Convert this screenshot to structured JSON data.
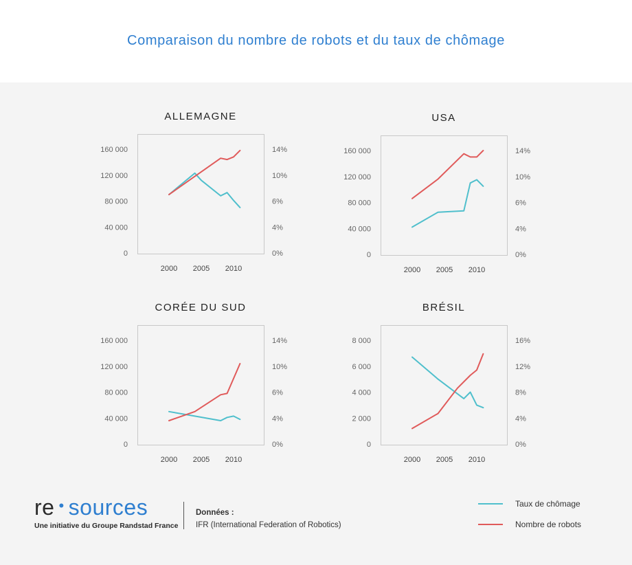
{
  "header": {
    "title": "Comparaison du nombre de robots et du taux de chômage"
  },
  "colors": {
    "robots": "#e05a5a",
    "chomage": "#4fbfcc",
    "accent": "#2f7fd0"
  },
  "logo": {
    "part1": "re",
    "dot": "•",
    "part2": "sources",
    "tagline": "Une initiative du Groupe Randstad France"
  },
  "source": {
    "label": "Données :",
    "text": "IFR (International Federation of Robotics)"
  },
  "legend": [
    {
      "label": "Taux de chômage",
      "color": "#4fbfcc"
    },
    {
      "label": "Nombre de robots",
      "color": "#e05a5a"
    }
  ],
  "chart_data": [
    {
      "type": "line",
      "title": "ALLEMAGNE",
      "x_ticks": [
        "2000",
        "2005",
        "2010"
      ],
      "left_axis": {
        "ticks": [
          "0",
          "40 000",
          "80 000",
          "120 000",
          "160 000"
        ],
        "ylim": [
          0,
          160000
        ]
      },
      "right_axis": {
        "ticks": [
          "0%",
          "4%",
          "6%",
          "10%",
          "14%"
        ],
        "ylim": [
          0,
          16
        ]
      },
      "series": [
        {
          "name": "Taux de chômage",
          "axis": "right",
          "x": [
            2000,
            2004,
            2005,
            2008,
            2009,
            2010,
            2011
          ],
          "values": [
            9.0,
            12.3,
            11.2,
            8.8,
            9.3,
            8.1,
            7.0
          ]
        },
        {
          "name": "Nombre de robots",
          "axis": "left",
          "x": [
            2000,
            2004,
            2008,
            2009,
            2010,
            2011
          ],
          "values": [
            90000,
            118000,
            146000,
            144000,
            148000,
            158000
          ]
        }
      ]
    },
    {
      "type": "line",
      "title": "USA",
      "x_ticks": [
        "2000",
        "2005",
        "2010"
      ],
      "left_axis": {
        "ticks": [
          "0",
          "40 000",
          "80 000",
          "120 000",
          "160 000"
        ],
        "ylim": [
          0,
          160000
        ]
      },
      "right_axis": {
        "ticks": [
          "0%",
          "4%",
          "6%",
          "10%",
          "14%"
        ],
        "ylim": [
          0,
          16
        ]
      },
      "series": [
        {
          "name": "Taux de chômage",
          "axis": "right",
          "x": [
            2000,
            2004,
            2008,
            2009,
            2010,
            2011
          ],
          "values": [
            4.2,
            6.5,
            6.7,
            11.0,
            11.5,
            10.5
          ]
        },
        {
          "name": "Nombre de robots",
          "axis": "left",
          "x": [
            2000,
            2004,
            2008,
            2009,
            2010,
            2011
          ],
          "values": [
            86000,
            116000,
            155000,
            150000,
            150000,
            160000
          ]
        }
      ]
    },
    {
      "type": "line",
      "title": "CORÉE DU SUD",
      "x_ticks": [
        "2000",
        "2005",
        "2010"
      ],
      "left_axis": {
        "ticks": [
          "0",
          "40 000",
          "80 000",
          "120 000",
          "160 000"
        ],
        "ylim": [
          0,
          160000
        ]
      },
      "right_axis": {
        "ticks": [
          "0%",
          "4%",
          "6%",
          "10%",
          "14%"
        ],
        "ylim": [
          0,
          16
        ]
      },
      "series": [
        {
          "name": "Taux de chômage",
          "axis": "right",
          "x": [
            2000,
            2004,
            2008,
            2009,
            2010,
            2011
          ],
          "values": [
            5.0,
            4.3,
            3.6,
            4.1,
            4.3,
            3.8
          ]
        },
        {
          "name": "Nombre de robots",
          "axis": "left",
          "x": [
            2000,
            2004,
            2008,
            2009,
            2011
          ],
          "values": [
            36000,
            50000,
            76000,
            78000,
            124000
          ]
        }
      ]
    },
    {
      "type": "line",
      "title": "BRÉSIL",
      "x_ticks": [
        "2000",
        "2005",
        "2010"
      ],
      "left_axis": {
        "ticks": [
          "0",
          "2 000",
          "4 000",
          "6 000",
          "8 000"
        ],
        "ylim": [
          0,
          8000
        ]
      },
      "right_axis": {
        "ticks": [
          "0%",
          "4%",
          "8%",
          "12%",
          "16%"
        ],
        "ylim": [
          0,
          16
        ]
      },
      "series": [
        {
          "name": "Taux de chômage",
          "axis": "right",
          "x": [
            2000,
            2004,
            2008,
            2009,
            2010,
            2011
          ],
          "values": [
            13.4,
            10.0,
            7.0,
            8.0,
            6.0,
            5.6
          ]
        },
        {
          "name": "Nombre de robots",
          "axis": "left",
          "x": [
            2000,
            2004,
            2007,
            2009,
            2010,
            2011
          ],
          "values": [
            1200,
            2350,
            4300,
            5300,
            5700,
            6950
          ]
        }
      ]
    }
  ]
}
